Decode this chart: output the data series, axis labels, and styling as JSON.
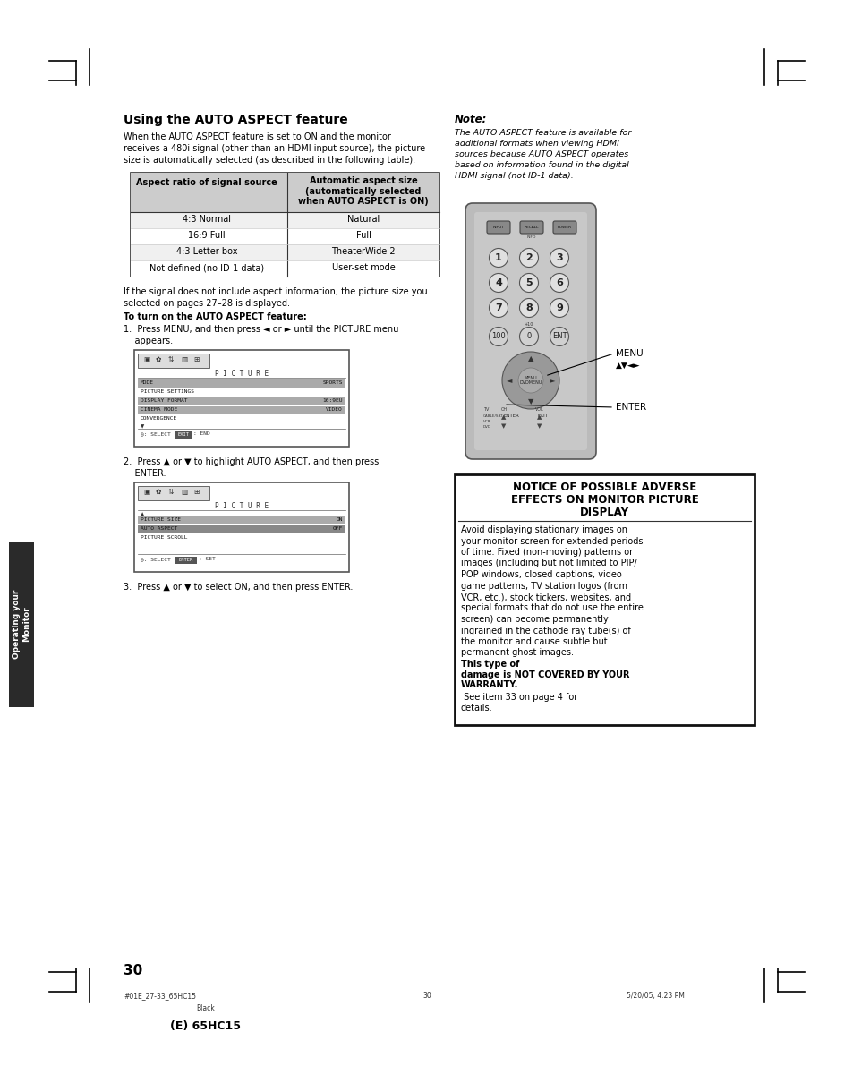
{
  "page_bg": "#ffffff",
  "page_number": "30",
  "footer_left": "#01E_27-33_65HC15",
  "footer_center": "30",
  "footer_right": "5/20/05, 4:23 PM",
  "footer_color": "Black",
  "footer_bottom": "(E) 65HC15",
  "title": "Using the AUTO ASPECT feature",
  "body1_line1": "When the AUTO ASPECT feature is set to ON and the monitor",
  "body1_line2": "receives a 480i signal (other than an HDMI input source), the picture",
  "body1_line3": "size is automatically selected (as described in the following table).",
  "table_header_left": "Aspect ratio of signal source",
  "table_header_right_line1": "Automatic aspect size",
  "table_header_right_line2": "(automatically selected",
  "table_header_right_line3": "when AUTO ASPECT is ON)",
  "table_rows": [
    [
      "4:3 Normal",
      "Natural"
    ],
    [
      "16:9 Full",
      "Full"
    ],
    [
      "4:3 Letter box",
      "TheaterWide 2"
    ],
    [
      "Not defined (no ID-1 data)",
      "User-set mode"
    ]
  ],
  "body2_line1": "If the signal does not include aspect information, the picture size you",
  "body2_line2": "selected on pages 27–28 is displayed.",
  "body3": "To turn on the AUTO ASPECT feature:",
  "step1_line1": "1.  Press MENU, and then press ◄ or ► until the PICTURE menu",
  "step1_line2": "    appears.",
  "step2_line1": "2.  Press ▲ or ▼ to highlight AUTO ASPECT, and then press",
  "step2_line2": "    ENTER.",
  "step3": "3.  Press ▲ or ▼ to select ON, and then press ENTER.",
  "note_title": "Note:",
  "note_line1": "The AUTO ASPECT feature is available for",
  "note_line2": "additional formats when viewing HDMI",
  "note_line3": "sources because AUTO ASPECT operates",
  "note_line4": "based on information found in the digital",
  "note_line5": "HDMI signal (not ID-1 data).",
  "notice_title1": "NOTICE OF POSSIBLE ADVERSE",
  "notice_title2": "EFFECTS ON MONITOR PICTURE",
  "notice_title3": "DISPLAY",
  "notice_lines": [
    "Avoid displaying stationary images on",
    "your monitor screen for extended periods",
    "of time. Fixed (non-moving) patterns or",
    "images (including but not limited to PIP/",
    "POP windows, closed captions, video",
    "game patterns, TV station logos (from",
    "VCR, etc.), stock tickers, websites, and",
    "special formats that do not use the entire",
    "screen) can become permanently",
    "ingrained in the cathode ray tube(s) of",
    "the monitor and cause subtle but",
    "permanent ghost images. "
  ],
  "notice_bold": "This type of\ndamage is NOT COVERED BY YOUR\nWARRANTY.",
  "notice_end": " See item 33 on page 4 for\ndetails.",
  "sidebar_text": "Operating your\nMonitor",
  "corner_color": "#000000",
  "menu_label": "MENU",
  "arrows_label": "▲▼◄►",
  "enter_label": "ENTER"
}
